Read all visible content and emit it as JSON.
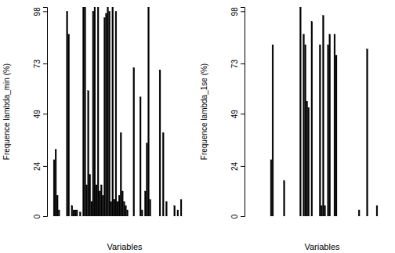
{
  "chart_data": [
    {
      "type": "bar",
      "y_label": "Frequence lambda_min (%)",
      "x_label": "Variables",
      "categories": [
        null,
        null,
        null,
        null,
        null,
        null,
        null,
        null,
        null,
        null,
        null,
        null,
        null,
        null,
        null,
        null,
        null,
        null,
        null,
        null,
        null,
        null,
        null,
        null,
        null,
        null,
        null,
        null,
        null,
        null,
        null,
        null,
        null,
        null,
        null,
        null,
        null,
        null,
        null,
        null,
        null,
        null,
        null,
        null,
        null,
        null,
        null,
        null,
        null,
        null,
        null,
        null,
        null,
        null,
        null,
        null,
        null,
        null,
        null,
        null,
        null,
        null,
        null,
        null,
        null,
        null,
        null,
        null,
        null,
        null,
        null,
        null,
        null,
        null,
        null,
        null,
        null,
        null,
        null,
        null
      ],
      "values": [
        0,
        27,
        32,
        10,
        3,
        0,
        0,
        0,
        0,
        98,
        87,
        0,
        5,
        3,
        3,
        3,
        0,
        2,
        0,
        100,
        100,
        15,
        60,
        20,
        7,
        98,
        100,
        15,
        100,
        12,
        15,
        10,
        95,
        97,
        100,
        98,
        7,
        100,
        8,
        98,
        7,
        10,
        40,
        12,
        7,
        5,
        3,
        0,
        0,
        0,
        71,
        0,
        0,
        0,
        57,
        3,
        0,
        12,
        35,
        100,
        8,
        0,
        0,
        0,
        0,
        0,
        70,
        0,
        40,
        0,
        7,
        0,
        0,
        0,
        0,
        5,
        0,
        3,
        0,
        8
      ],
      "color": "#000000",
      "ylim": [
        0,
        100
      ],
      "yticks": [
        0,
        24,
        49,
        73,
        98
      ],
      "tick_labels": "y"
    },
    {
      "type": "bar",
      "y_label": "Frequence lambda_1se (%)",
      "x_label": "Variables",
      "categories": [
        null,
        null,
        null,
        null,
        null,
        null,
        null,
        null,
        null,
        null,
        null,
        null,
        null,
        null,
        null,
        null,
        null,
        null,
        null,
        null,
        null,
        null,
        null,
        null,
        null,
        null,
        null,
        null,
        null,
        null,
        null,
        null,
        null,
        null,
        null,
        null,
        null,
        null,
        null,
        null,
        null,
        null,
        null,
        null,
        null,
        null,
        null,
        null,
        null,
        null,
        null,
        null,
        null,
        null,
        null,
        null,
        null,
        null,
        null,
        null,
        null,
        null,
        null,
        null,
        null,
        null,
        null,
        null,
        null,
        null,
        null,
        null,
        null,
        null,
        null,
        null,
        null,
        null,
        null,
        null
      ],
      "values": [
        0,
        0,
        0,
        0,
        0,
        0,
        0,
        0,
        0,
        0,
        0,
        0,
        0,
        27,
        82,
        0,
        0,
        0,
        0,
        0,
        0,
        17,
        0,
        0,
        0,
        0,
        0,
        0,
        0,
        0,
        0,
        100,
        0,
        87,
        82,
        55,
        52,
        0,
        93,
        0,
        0,
        0,
        0,
        82,
        5,
        96,
        5,
        0,
        82,
        87,
        0,
        0,
        87,
        77,
        0,
        0,
        0,
        0,
        0,
        0,
        0,
        0,
        0,
        0,
        0,
        0,
        0,
        3,
        0,
        0,
        0,
        0,
        80,
        0,
        0,
        0,
        0,
        0,
        5,
        0
      ],
      "color": "#000000",
      "ylim": [
        0,
        100
      ],
      "yticks": [
        0,
        24,
        49,
        73,
        98
      ],
      "tick_labels": "y"
    }
  ]
}
